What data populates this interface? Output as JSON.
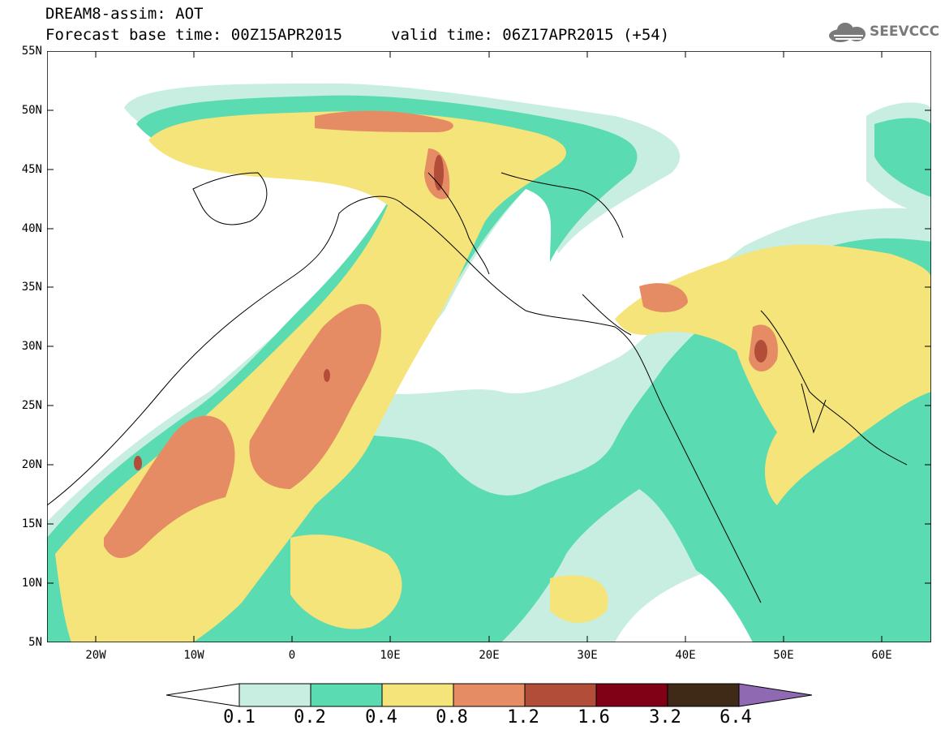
{
  "header": {
    "title_line1": "DREAM8-assim: AOT",
    "title_line2": "Forecast base time: 00Z15APR2015",
    "valid_time": "valid time: 06Z17APR2015 (+54)"
  },
  "logo": {
    "text": "SEEVCCC",
    "icon": "cloud-icon",
    "color": "#7a7a7a"
  },
  "map": {
    "lat_labels": [
      "55N",
      "50N",
      "45N",
      "40N",
      "35N",
      "30N",
      "25N",
      "20N",
      "15N",
      "10N",
      "5N"
    ],
    "lon_labels": [
      "20W",
      "10W",
      "0",
      "10E",
      "20E",
      "30E",
      "40E",
      "50E",
      "60E"
    ],
    "lat_range": [
      5,
      55
    ],
    "lon_range": [
      -25,
      65
    ],
    "variable": "AOT"
  },
  "legend": {
    "labels": [
      "0.1",
      "0.2",
      "0.4",
      "0.8",
      "1.2",
      "1.6",
      "3.2",
      "6.4"
    ],
    "colors": [
      "#ffffff",
      "#c8eee2",
      "#5bdbb1",
      "#f5e47a",
      "#e58c64",
      "#b24d3a",
      "#800016",
      "#3e2a16",
      "#8f6ab3"
    ]
  }
}
